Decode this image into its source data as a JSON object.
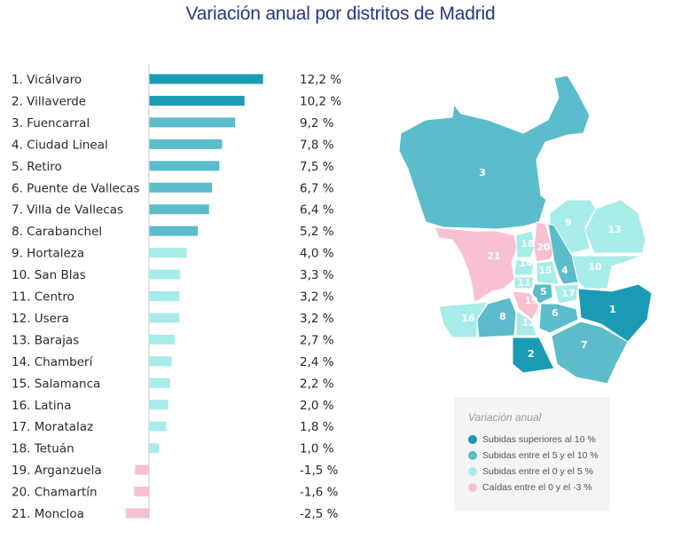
{
  "title": "Variación anual por distritos de Madrid",
  "colors": {
    "high": "#1a9bb3",
    "mid": "#5bbccb",
    "low": "#a7ece8",
    "neg": "#f7c1d2",
    "title": "#2b3487",
    "axis": "#cfcfcf"
  },
  "chart_data": {
    "type": "bar",
    "orientation": "horizontal",
    "title": "Variación anual por distritos de Madrid",
    "xlabel": "",
    "ylabel": "",
    "xlim": [
      -3,
      13
    ],
    "grid": false,
    "categories": [
      "1. Vicálvaro",
      "2. Villaverde",
      "3. Fuencarral",
      "4. Ciudad Lineal",
      "5. Retiro",
      "6. Puente de Vallecas",
      "7. Villa de Vallecas",
      "8. Carabanchel",
      "9. Hortaleza",
      "10. San Blas",
      "11. Centro",
      "12. Usera",
      "13. Barajas",
      "14. Chamberí",
      "15. Salamanca",
      "16. Latina",
      "17. Moratalaz",
      "18. Tetuán",
      "19. Arganzuela",
      "20. Chamartín",
      "21. Moncloa"
    ],
    "values": [
      12.2,
      10.2,
      9.2,
      7.8,
      7.5,
      6.7,
      6.4,
      5.2,
      4.0,
      3.3,
      3.2,
      3.2,
      2.7,
      2.4,
      2.2,
      2.0,
      1.8,
      1.0,
      -1.5,
      -1.6,
      -2.5
    ],
    "value_labels": [
      "12,2 %",
      "10,2 %",
      "9,2 %",
      "7,8 %",
      "7,5 %",
      "6,7 %",
      "6,4 %",
      "5,2 %",
      "4,0 %",
      "3,3 %",
      "3,2 %",
      "3,2 %",
      "2,7 %",
      "2,4 %",
      "2,2 %",
      "2,0 %",
      "1,8 %",
      "1,0 %",
      "-1,5 %",
      "-1,6 %",
      "-2,5 %"
    ],
    "categories_class": [
      "high",
      "high",
      "mid",
      "mid",
      "mid",
      "mid",
      "mid",
      "mid",
      "low",
      "low",
      "low",
      "low",
      "low",
      "low",
      "low",
      "low",
      "low",
      "low",
      "neg",
      "neg",
      "neg"
    ]
  },
  "map": {
    "labels": [
      "1",
      "2",
      "3",
      "4",
      "5",
      "6",
      "7",
      "8",
      "9",
      "10",
      "11",
      "12",
      "13",
      "14",
      "15",
      "16",
      "17",
      "18",
      "19",
      "20",
      "21"
    ]
  },
  "legend": {
    "title": "Variación anual",
    "items": [
      {
        "label": "Subidas superiores al 10 %",
        "class": "high"
      },
      {
        "label": "Subidas entre el 5 y el 10 %",
        "class": "mid"
      },
      {
        "label": "Subidas entre el 0 y el 5 %",
        "class": "low"
      },
      {
        "label": "Caídas entre el 0 y el -3 %",
        "class": "neg"
      }
    ]
  }
}
